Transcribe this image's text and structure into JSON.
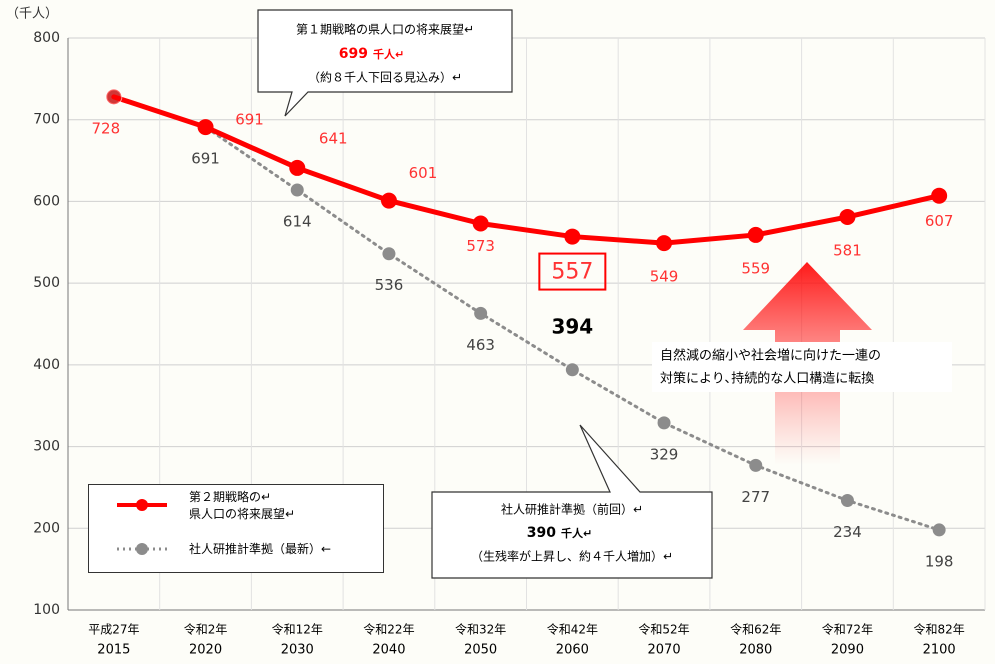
{
  "chart_data": {
    "type": "line",
    "y_unit_label": "（千人）",
    "categories": [
      "平成27年",
      "令和2年",
      "令和12年",
      "令和22年",
      "令和32年",
      "令和42年",
      "令和52年",
      "令和62年",
      "令和72年",
      "令和82年"
    ],
    "category_years": [
      "2015",
      "2020",
      "2030",
      "2040",
      "2050",
      "2060",
      "2070",
      "2080",
      "2090",
      "2100"
    ],
    "series": [
      {
        "name": "第２期戦略の↵\n県人口の将来展望↵",
        "color": "#ff0000",
        "values": [
          728,
          691,
          641,
          601,
          573,
          557,
          549,
          559,
          581,
          607
        ]
      },
      {
        "name": "社人研推計準拠（最新）←",
        "color": "#8c8c8c",
        "values": [
          728,
          691,
          614,
          536,
          463,
          394,
          329,
          277,
          234,
          198
        ]
      }
    ],
    "ylim": [
      100,
      800
    ],
    "yticks": [
      100,
      200,
      300,
      400,
      500,
      600,
      700,
      800
    ],
    "grid": true,
    "annotations": {
      "callout_first": [
        "第１期戦略の県人口の将来展望↵",
        "699",
        "千人↵",
        "（約８千人下回る見込み）↵"
      ],
      "callout_previous": [
        "社人研推計準拠（前回）↵",
        "390",
        "千人↵",
        "（生残率が上昇し、約４千人増加）↵"
      ],
      "arrow_text": [
        "自然減の縮小や社会増に向けた一連の",
        "対策により､持続的な人口構造に転換"
      ]
    }
  }
}
